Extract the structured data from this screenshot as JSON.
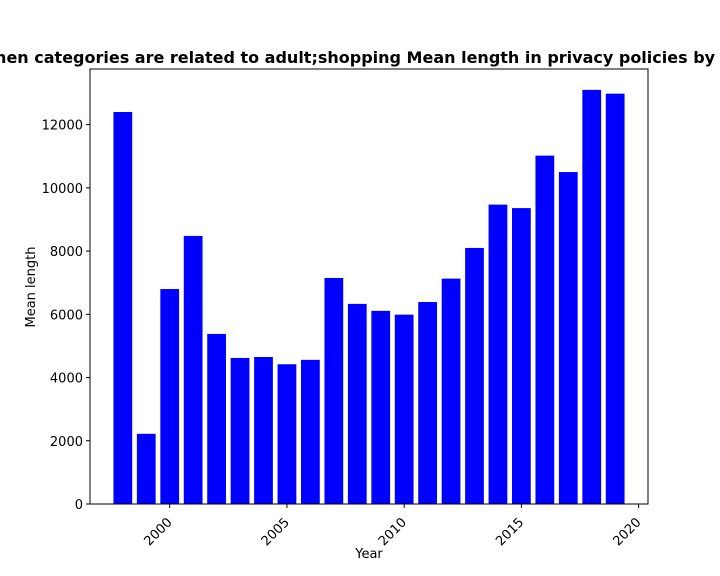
{
  "chart_data": {
    "type": "bar",
    "title": "When categories are related to adult;shopping Mean length in privacy policies by year",
    "xlabel": "Year",
    "ylabel": "Mean length",
    "x": [
      1998,
      1999,
      2000,
      2001,
      2002,
      2003,
      2004,
      2005,
      2006,
      2007,
      2008,
      2009,
      2010,
      2011,
      2012,
      2013,
      2014,
      2015,
      2016,
      2017,
      2018,
      2019
    ],
    "values": [
      12400,
      2220,
      6800,
      8480,
      5380,
      4620,
      4650,
      4420,
      4560,
      7150,
      6330,
      6110,
      5990,
      6390,
      7130,
      8100,
      9470,
      9360,
      11020,
      10500,
      13100,
      12980
    ],
    "xlim": [
      1996.6,
      2020.4
    ],
    "ylim": [
      0,
      13760
    ],
    "xticks": [
      "2000",
      "2005",
      "2010",
      "2015",
      "2020"
    ],
    "yticks": [
      "0",
      "2000",
      "4000",
      "6000",
      "8000",
      "10000",
      "12000"
    ],
    "bar_color": "#0000ff",
    "grid": false,
    "legend": "none"
  }
}
